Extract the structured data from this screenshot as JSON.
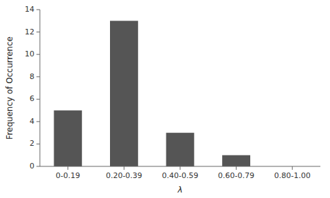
{
  "chart_data": {
    "type": "bar",
    "categories": [
      "0-0.19",
      "0.20-0.39",
      "0.40-0.59",
      "0.60-0.79",
      "0.80-1.00"
    ],
    "values": [
      5,
      13,
      3,
      1,
      0
    ],
    "color": "#555555",
    "xlabel": "λ",
    "ylabel": "Frequency of Occurrence",
    "ylim": [
      0,
      14
    ],
    "yticks": [
      0,
      2,
      4,
      6,
      8,
      10,
      12,
      14
    ],
    "grid": false
  }
}
